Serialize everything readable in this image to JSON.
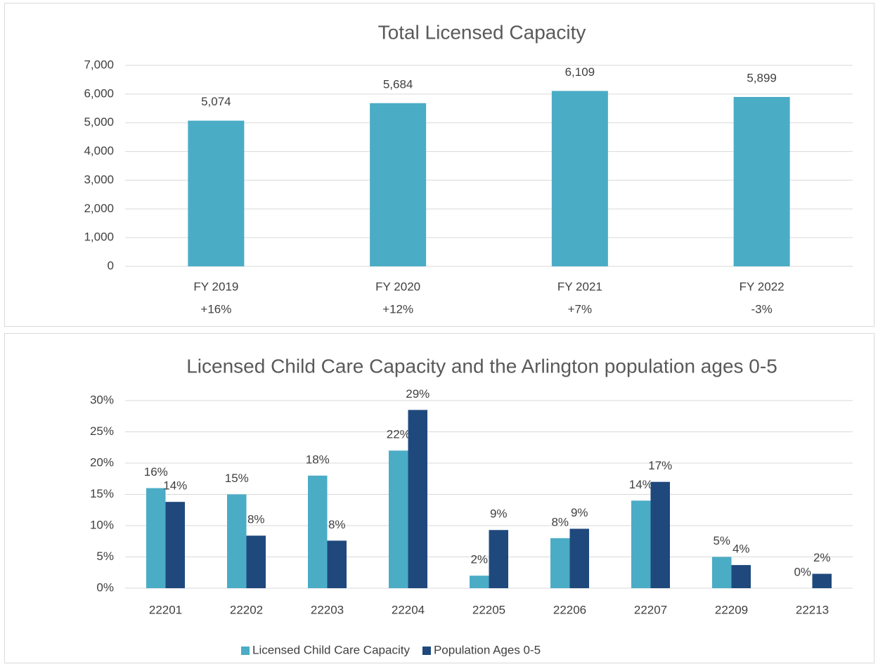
{
  "chart_data": [
    {
      "type": "bar",
      "title": "Total Licensed Capacity",
      "categories": [
        "FY 2019",
        "FY 2020",
        "FY 2021",
        "FY 2022"
      ],
      "change_labels": [
        "+16%",
        "+12%",
        "+7%",
        "-3%"
      ],
      "values": [
        5074,
        5684,
        6109,
        5899
      ],
      "value_labels": [
        "5,074",
        "5,684",
        "6,109",
        "5,899"
      ],
      "color": "#4bacc6",
      "ylim": [
        0,
        7000
      ],
      "yticks": [
        0,
        {
          "value": 1000,
          "label": "1,000"
        },
        {
          "value": 2000,
          "label": "2,000"
        },
        {
          "value": 3000,
          "label": "3,000"
        },
        {
          "value": 4000,
          "label": "4,000"
        },
        {
          "value": 5000,
          "label": "5,000"
        },
        {
          "value": 6000,
          "label": "6,000"
        },
        {
          "value": 7000,
          "label": "7,000"
        }
      ],
      "grid": true
    },
    {
      "type": "grouped_bar",
      "title": "Licensed Child Care Capacity and the Arlington population ages 0-5",
      "categories": [
        "22201",
        "22202",
        "22203",
        "22204",
        "22205",
        "22206",
        "22207",
        "22209",
        "22213"
      ],
      "series": [
        {
          "name": "Licensed Child Care Capacity",
          "color": "#4bacc6",
          "values": [
            16,
            15,
            18,
            22,
            2,
            8,
            14,
            5,
            0
          ],
          "value_labels": [
            "16%",
            "15%",
            "18%",
            "22%",
            "2%",
            "8%",
            "14%",
            "5%",
            "0%"
          ]
        },
        {
          "name": "Population Ages 0-5",
          "color": "#1f497d",
          "values": [
            13.8,
            8.4,
            7.6,
            28.5,
            9.3,
            9.5,
            17,
            3.7,
            2.3
          ],
          "value_labels": [
            "14%",
            "8%",
            "8%",
            "29%",
            "9%",
            "9%",
            "17%",
            "4%",
            "2%"
          ]
        }
      ],
      "ylim": [
        0,
        30
      ],
      "yticks": [
        {
          "value": 0,
          "label": "0%"
        },
        {
          "value": 5,
          "label": "5%"
        },
        {
          "value": 10,
          "label": "10%"
        },
        {
          "value": 15,
          "label": "15%"
        },
        {
          "value": 20,
          "label": "20%"
        },
        {
          "value": 25,
          "label": "25%"
        },
        {
          "value": 30,
          "label": "30%"
        }
      ],
      "grid": true,
      "legend": "bottom"
    }
  ]
}
